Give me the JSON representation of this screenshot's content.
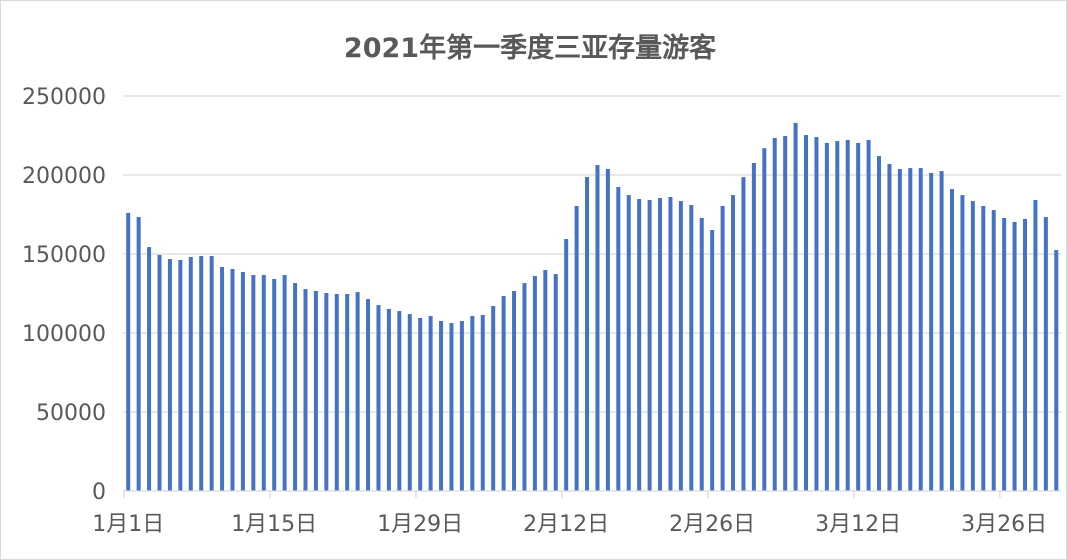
{
  "chart_data": {
    "type": "bar",
    "title": "2021年第一季度三亚存量游客",
    "xlabel": "",
    "ylabel": "",
    "ylim": [
      0,
      250000
    ],
    "yticks": [
      0,
      50000,
      100000,
      150000,
      200000,
      250000
    ],
    "grid": true,
    "legend": "none",
    "bar_color": "#4472c4",
    "grid_color": "#d9d9d9",
    "x_tick_labels": [
      {
        "index": 0,
        "label": "1月1日"
      },
      {
        "index": 14,
        "label": "1月15日"
      },
      {
        "index": 28,
        "label": "1月29日"
      },
      {
        "index": 42,
        "label": "2月12日"
      },
      {
        "index": 56,
        "label": "2月26日"
      },
      {
        "index": 70,
        "label": "3月12日"
      },
      {
        "index": 84,
        "label": "3月26日"
      }
    ],
    "categories_note_range": [
      "1月1日",
      "3月31日"
    ],
    "values": [
      176000,
      173400,
      154400,
      149400,
      146800,
      146200,
      148100,
      148700,
      148700,
      141800,
      140500,
      138600,
      136700,
      136700,
      134200,
      136700,
      131600,
      127800,
      126600,
      125300,
      124700,
      124700,
      125900,
      121500,
      117700,
      115200,
      113900,
      112000,
      109500,
      110800,
      107600,
      106300,
      107600,
      110800,
      111400,
      117100,
      123400,
      126600,
      131600,
      136100,
      139900,
      137300,
      159500,
      180400,
      198700,
      206300,
      203800,
      192400,
      187300,
      184800,
      184200,
      185400,
      186100,
      183500,
      181000,
      172800,
      165200,
      180400,
      187300,
      198700,
      207600,
      217000,
      223400,
      224700,
      233000,
      225300,
      224000,
      220300,
      221500,
      222200,
      220300,
      222200,
      212000,
      207000,
      203800,
      204400,
      204400,
      201300,
      202500,
      191100,
      187300,
      183500,
      180400,
      177800,
      172800,
      170300,
      172200,
      184200,
      173400,
      152500
    ]
  }
}
